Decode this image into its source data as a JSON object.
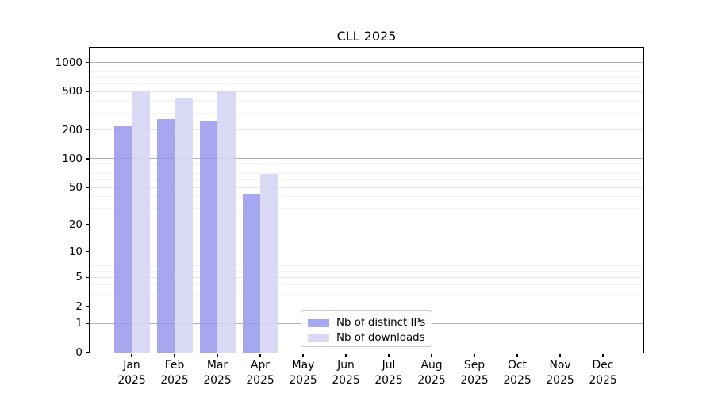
{
  "chart_data": {
    "type": "bar",
    "title": "CLL 2025",
    "categories": [
      "Jan 2025",
      "Feb 2025",
      "Mar 2025",
      "Apr 2025",
      "May 2025",
      "Jun 2025",
      "Jul 2025",
      "Aug 2025",
      "Sep 2025",
      "Oct 2025",
      "Nov 2025",
      "Dec 2025"
    ],
    "series": [
      {
        "name": "Nb of distinct IPs",
        "color": "#9898ec",
        "values": [
          220,
          257,
          247,
          43,
          0,
          0,
          0,
          0,
          0,
          0,
          0,
          0
        ]
      },
      {
        "name": "Nb of downloads",
        "color": "#d4d4f6",
        "values": [
          515,
          424,
          508,
          69,
          0,
          0,
          0,
          0,
          0,
          0,
          0,
          0
        ]
      }
    ],
    "xlabel": "",
    "ylabel": "",
    "y_scale": "log1p",
    "ylim": [
      0,
      1425
    ],
    "y_ticks": [
      0,
      1,
      2,
      5,
      10,
      20,
      50,
      100,
      200,
      500,
      1000
    ],
    "y_minor_gridlines": [
      3,
      4,
      6,
      7,
      8,
      9,
      30,
      40,
      60,
      70,
      80,
      90,
      300,
      400,
      600,
      700,
      800,
      900
    ],
    "grid": true,
    "legend_position": "lower center",
    "colors": {
      "major_gridline": "#b4b4b4",
      "labeled_gridline": "#e6e6e6",
      "minor_gridline": "#f3f3f3",
      "axis": "#000000",
      "legend_border": "#cccccc"
    }
  }
}
